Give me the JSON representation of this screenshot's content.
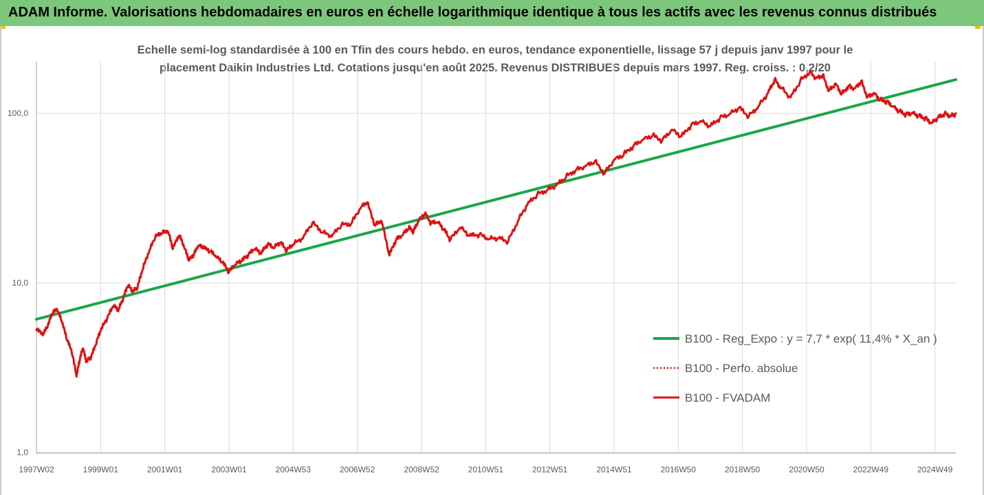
{
  "header": {
    "title": "ADAM Informe. Valorisations hebdomadaires en euros en échelle logarithmique identique à tous les actifs avec les revenus connus distribués"
  },
  "colors": {
    "header_bg": "#7dc77d",
    "trend": "#1aa64a",
    "series": "#e01010",
    "grid": "#d9d9d9",
    "text": "#595959"
  },
  "chart_data": {
    "type": "line",
    "title_line1": "Echelle semi-log standardisée à 100 en Tfin des cours hebdo. en euros, tendance exponentielle, lissage 57 j depuis janv 1997 pour le",
    "title_line2": "placement Daikin Industries Ltd. Cotations jusqu'en août 2025. Revenus DISTRIBUES depuis mars 1997. Reg. croiss. : 0,2/20",
    "y_scale": "log",
    "ylim": [
      1,
      200
    ],
    "y_ticks": [
      {
        "value": 1,
        "label": "1,0"
      },
      {
        "value": 10,
        "label": "10,0"
      },
      {
        "value": 100,
        "label": "100,0"
      }
    ],
    "xlim": [
      1997.0,
      2025.65
    ],
    "x_ticks": [
      {
        "value": 1997.0,
        "label": "1997W02"
      },
      {
        "value": 1999.0,
        "label": "1999W01"
      },
      {
        "value": 2001.0,
        "label": "2001W01"
      },
      {
        "value": 2003.0,
        "label": "2003W01"
      },
      {
        "value": 2005.0,
        "label": "2004W53"
      },
      {
        "value": 2007.0,
        "label": "2006W52"
      },
      {
        "value": 2009.0,
        "label": "2008W52"
      },
      {
        "value": 2011.0,
        "label": "2010W51"
      },
      {
        "value": 2013.0,
        "label": "2012W51"
      },
      {
        "value": 2015.0,
        "label": "2014W51"
      },
      {
        "value": 2017.0,
        "label": "2016W50"
      },
      {
        "value": 2019.0,
        "label": "2018W50"
      },
      {
        "value": 2021.0,
        "label": "2020W50"
      },
      {
        "value": 2023.0,
        "label": "2022W49"
      },
      {
        "value": 2025.0,
        "label": "2024W49"
      }
    ],
    "grid": true,
    "legend_position": "bottom-right",
    "series": [
      {
        "name": "B100 - Reg_Expo : y = 7,7 * exp( 11,4% *  X_an )",
        "style": "solid-green",
        "x": [
          1997.0,
          2025.65
        ],
        "y": [
          6.1,
          158
        ]
      },
      {
        "name": "B100 - Perfo. absolue",
        "style": "dotted-red",
        "x": [],
        "y": []
      },
      {
        "name": "B100 - FVADAM",
        "style": "solid-red",
        "x": [
          1997.0,
          1997.2,
          1997.35,
          1997.5,
          1997.65,
          1997.8,
          1997.95,
          1998.1,
          1998.25,
          1998.35,
          1998.45,
          1998.55,
          1998.7,
          1998.85,
          1999.0,
          1999.2,
          1999.4,
          1999.55,
          1999.7,
          1999.85,
          2000.0,
          2000.15,
          2000.3,
          2000.5,
          2000.7,
          2000.9,
          2001.1,
          2001.25,
          2001.45,
          2001.6,
          2001.75,
          2001.9,
          2002.05,
          2002.2,
          2002.4,
          2002.6,
          2002.8,
          2003.0,
          2003.2,
          2003.4,
          2003.6,
          2003.8,
          2004.0,
          2004.2,
          2004.4,
          2004.6,
          2004.8,
          2005.0,
          2005.3,
          2005.6,
          2005.9,
          2006.2,
          2006.5,
          2006.8,
          2007.1,
          2007.3,
          2007.55,
          2007.75,
          2008.0,
          2008.2,
          2008.4,
          2008.6,
          2008.75,
          2008.9,
          2009.1,
          2009.3,
          2009.5,
          2009.7,
          2009.9,
          2010.2,
          2010.5,
          2010.8,
          2011.1,
          2011.4,
          2011.7,
          2012.0,
          2012.3,
          2012.6,
          2012.9,
          2013.2,
          2013.5,
          2013.8,
          2014.1,
          2014.4,
          2014.7,
          2015.0,
          2015.3,
          2015.6,
          2015.9,
          2016.2,
          2016.5,
          2016.8,
          2017.1,
          2017.4,
          2017.7,
          2018.0,
          2018.3,
          2018.6,
          2018.9,
          2019.2,
          2019.5,
          2019.8,
          2020.0,
          2020.2,
          2020.5,
          2020.8,
          2021.1,
          2021.3,
          2021.5,
          2021.7,
          2021.9,
          2022.1,
          2022.3,
          2022.5,
          2022.7,
          2022.9,
          2023.1,
          2023.3,
          2023.5,
          2023.7,
          2023.9,
          2024.1,
          2024.3,
          2024.5,
          2024.7,
          2024.9,
          2025.1,
          2025.3,
          2025.5,
          2025.65
        ],
        "y": [
          5.3,
          4.9,
          5.5,
          6.6,
          6.9,
          5.8,
          4.6,
          3.9,
          2.8,
          3.5,
          4.1,
          3.4,
          3.6,
          4.3,
          5.2,
          6.1,
          7.3,
          6.8,
          8.0,
          9.6,
          8.8,
          9.3,
          11.8,
          15.0,
          18.5,
          19.5,
          20.0,
          15.8,
          19.0,
          16.2,
          13.5,
          14.5,
          16.5,
          16.0,
          15.3,
          14.2,
          13.1,
          11.5,
          12.8,
          13.4,
          14.5,
          15.8,
          14.8,
          16.8,
          16.0,
          17.2,
          15.4,
          16.8,
          18.2,
          22.5,
          19.8,
          18.7,
          21.8,
          22.1,
          27.5,
          29.8,
          21.7,
          23.2,
          14.5,
          17.8,
          19.0,
          21.0,
          20.0,
          23.0,
          25.5,
          22.4,
          22.8,
          20.5,
          17.9,
          21.2,
          18.9,
          19.2,
          18.1,
          18.3,
          17.5,
          23.0,
          29.0,
          33.0,
          35.0,
          37.5,
          42.0,
          46.0,
          48.5,
          52.0,
          44.0,
          53.0,
          57.0,
          64.0,
          70.0,
          74.0,
          69.0,
          80.0,
          73.0,
          85.0,
          90.0,
          84.0,
          94.0,
          99.0,
          108.0,
          96.0,
          110.0,
          132.0,
          158.0,
          142.0,
          124.0,
          155.0,
          176.0,
          161.0,
          168.0,
          136.0,
          150.0,
          130.0,
          145.0,
          140.0,
          155.0,
          125.0,
          132.0,
          120.0,
          118.0,
          110.0,
          103.0,
          99.0,
          101.0,
          97.0,
          94.0,
          88.0,
          95.0,
          100.0,
          97.0,
          100.0
        ]
      }
    ]
  }
}
